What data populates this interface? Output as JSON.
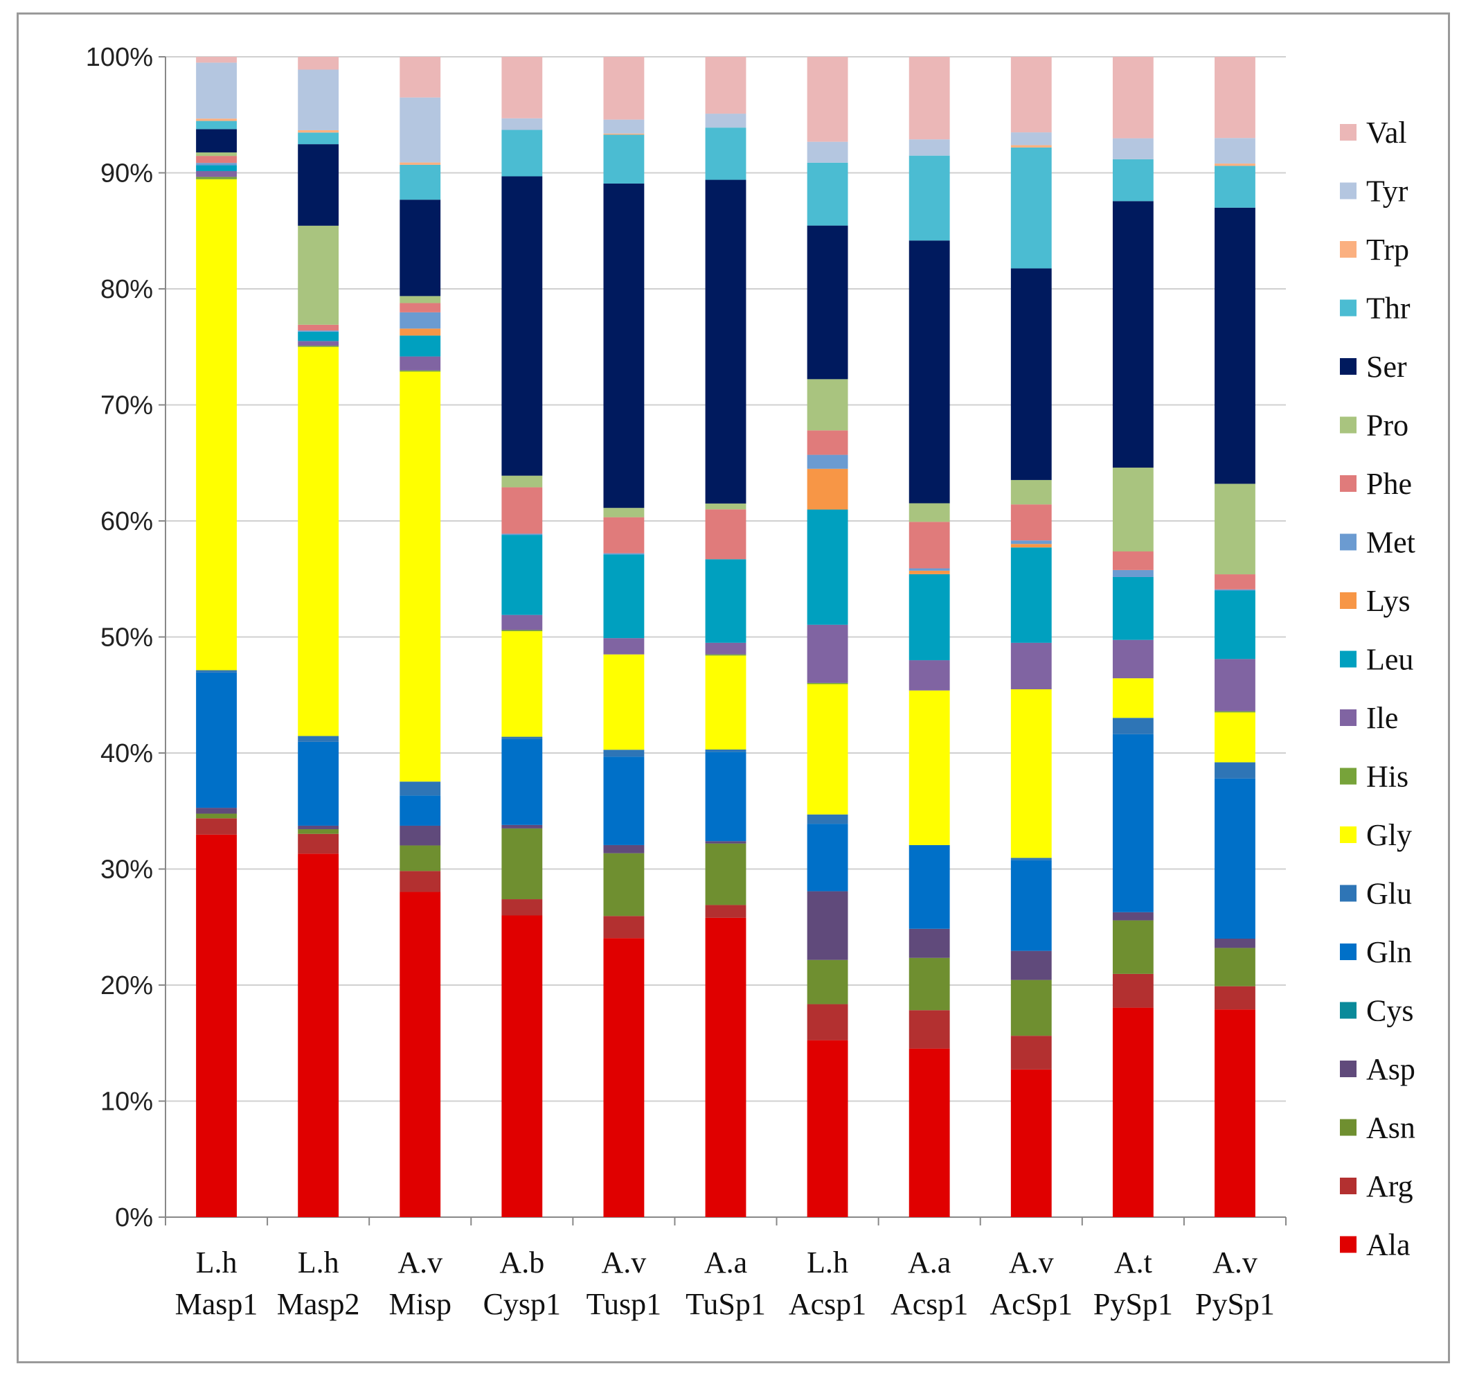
{
  "chart_data": {
    "type": "stacked-bar-percent",
    "title": "",
    "xlabel": "",
    "ylabel": "",
    "ylim": [
      0,
      100
    ],
    "y_ticks": [
      "0%",
      "10%",
      "20%",
      "30%",
      "40%",
      "50%",
      "60%",
      "70%",
      "80%",
      "90%",
      "100%"
    ],
    "grid": true,
    "legend_position": "right",
    "categories": [
      [
        "L.h",
        "Masp1"
      ],
      [
        "L.h",
        "Masp2"
      ],
      [
        "A.v",
        "Misp"
      ],
      [
        "A.b",
        "Cysp1"
      ],
      [
        "A.v",
        "Tusp1"
      ],
      [
        "A.a",
        "TuSp1"
      ],
      [
        "L.h",
        "Acsp1"
      ],
      [
        "A.a",
        "Acsp1"
      ],
      [
        "A.v",
        "AcSp1"
      ],
      [
        "A.t",
        "PySp1"
      ],
      [
        "A.v",
        "PySp1"
      ]
    ],
    "series": [
      {
        "name": "Ala",
        "color": "#e00000",
        "values": [
          32.8,
          31.2,
          28.0,
          26.0,
          24.0,
          25.8,
          15.2,
          14.5,
          12.7,
          18.0,
          17.9
        ]
      },
      {
        "name": "Arg",
        "color": "#b33030",
        "values": [
          1.4,
          1.7,
          1.8,
          1.4,
          1.9,
          1.1,
          3.1,
          3.3,
          2.9,
          2.9,
          2.0
        ]
      },
      {
        "name": "Asn",
        "color": "#6f8f30",
        "values": [
          0.4,
          0.4,
          2.2,
          6.1,
          5.4,
          5.3,
          3.8,
          4.5,
          4.8,
          4.6,
          3.3
        ]
      },
      {
        "name": "Asp",
        "color": "#604a7b",
        "values": [
          0.5,
          0.3,
          1.7,
          0.3,
          0.7,
          0.2,
          5.9,
          2.5,
          2.5,
          0.7,
          0.8
        ]
      },
      {
        "name": "Cys",
        "color": "#0a8a9a",
        "values": [
          0.0,
          0.0,
          0.0,
          0.0,
          0.0,
          0.0,
          0.0,
          0.0,
          0.0,
          0.0,
          0.0
        ]
      },
      {
        "name": "Gln",
        "color": "#0070c8",
        "values": [
          11.6,
          7.2,
          2.6,
          7.4,
          7.6,
          7.7,
          5.8,
          7.2,
          7.8,
          15.3,
          13.8
        ]
      },
      {
        "name": "Glu",
        "color": "#2e75b6",
        "values": [
          0.2,
          0.5,
          1.2,
          0.2,
          0.6,
          0.2,
          0.8,
          0.0,
          0.2,
          1.4,
          1.4
        ]
      },
      {
        "name": "Gly",
        "color": "#ffff00",
        "values": [
          42.1,
          33.4,
          35.3,
          9.1,
          8.2,
          8.1,
          11.2,
          13.3,
          14.5,
          3.4,
          4.3
        ]
      },
      {
        "name": "His",
        "color": "#77a33a",
        "values": [
          0.2,
          0.1,
          0.1,
          0.1,
          0.0,
          0.1,
          0.1,
          0.0,
          0.0,
          0.0,
          0.1
        ]
      },
      {
        "name": "Ile",
        "color": "#8064a2",
        "values": [
          0.5,
          0.4,
          1.2,
          1.3,
          1.4,
          1.0,
          5.0,
          2.6,
          4.0,
          3.3,
          4.5
        ]
      },
      {
        "name": "Leu",
        "color": "#00a0bf",
        "values": [
          0.5,
          0.8,
          1.8,
          6.9,
          7.2,
          7.2,
          9.9,
          7.4,
          8.2,
          5.4,
          5.9
        ]
      },
      {
        "name": "Lys",
        "color": "#f79646",
        "values": [
          0.0,
          0.0,
          0.6,
          0.0,
          0.0,
          0.0,
          3.5,
          0.3,
          0.3,
          0.0,
          0.0
        ]
      },
      {
        "name": "Met",
        "color": "#6b9bd1",
        "values": [
          0.2,
          0.1,
          1.4,
          0.1,
          0.1,
          0.0,
          1.2,
          0.2,
          0.3,
          0.6,
          0.1
        ]
      },
      {
        "name": "Phe",
        "color": "#e07b7b",
        "values": [
          0.6,
          0.5,
          0.8,
          4.0,
          3.1,
          4.3,
          2.1,
          4.0,
          3.1,
          1.6,
          1.3
        ]
      },
      {
        "name": "Pro",
        "color": "#a9c47f",
        "values": [
          0.3,
          8.5,
          0.6,
          1.0,
          0.8,
          0.5,
          4.4,
          1.6,
          2.1,
          7.2,
          7.8
        ]
      },
      {
        "name": "Ser",
        "color": "#001a5e",
        "values": [
          2.0,
          7.0,
          8.3,
          25.8,
          27.9,
          27.9,
          13.2,
          22.6,
          18.2,
          22.9,
          23.8
        ]
      },
      {
        "name": "Thr",
        "color": "#4bbcd2",
        "values": [
          0.7,
          1.0,
          3.0,
          4.0,
          4.2,
          4.5,
          5.4,
          7.3,
          10.4,
          3.6,
          3.6
        ]
      },
      {
        "name": "Trp",
        "color": "#fbb080",
        "values": [
          0.2,
          0.2,
          0.2,
          0.0,
          0.1,
          0.0,
          0.0,
          0.0,
          0.2,
          0.0,
          0.2
        ]
      },
      {
        "name": "Tyr",
        "color": "#b4c6e0",
        "values": [
          4.8,
          5.2,
          5.6,
          1.0,
          1.2,
          1.2,
          1.8,
          1.4,
          1.1,
          1.8,
          2.2
        ]
      },
      {
        "name": "Val",
        "color": "#ebb7b7",
        "values": [
          0.5,
          1.1,
          3.5,
          5.3,
          5.4,
          4.9,
          7.3,
          7.1,
          6.5,
          7.0,
          7.0
        ]
      }
    ],
    "legend_order": [
      "Val",
      "Tyr",
      "Trp",
      "Thr",
      "Ser",
      "Pro",
      "Phe",
      "Met",
      "Lys",
      "Leu",
      "Ile",
      "His",
      "Gly",
      "Glu",
      "Gln",
      "Cys",
      "Asp",
      "Asn",
      "Arg",
      "Ala"
    ]
  }
}
